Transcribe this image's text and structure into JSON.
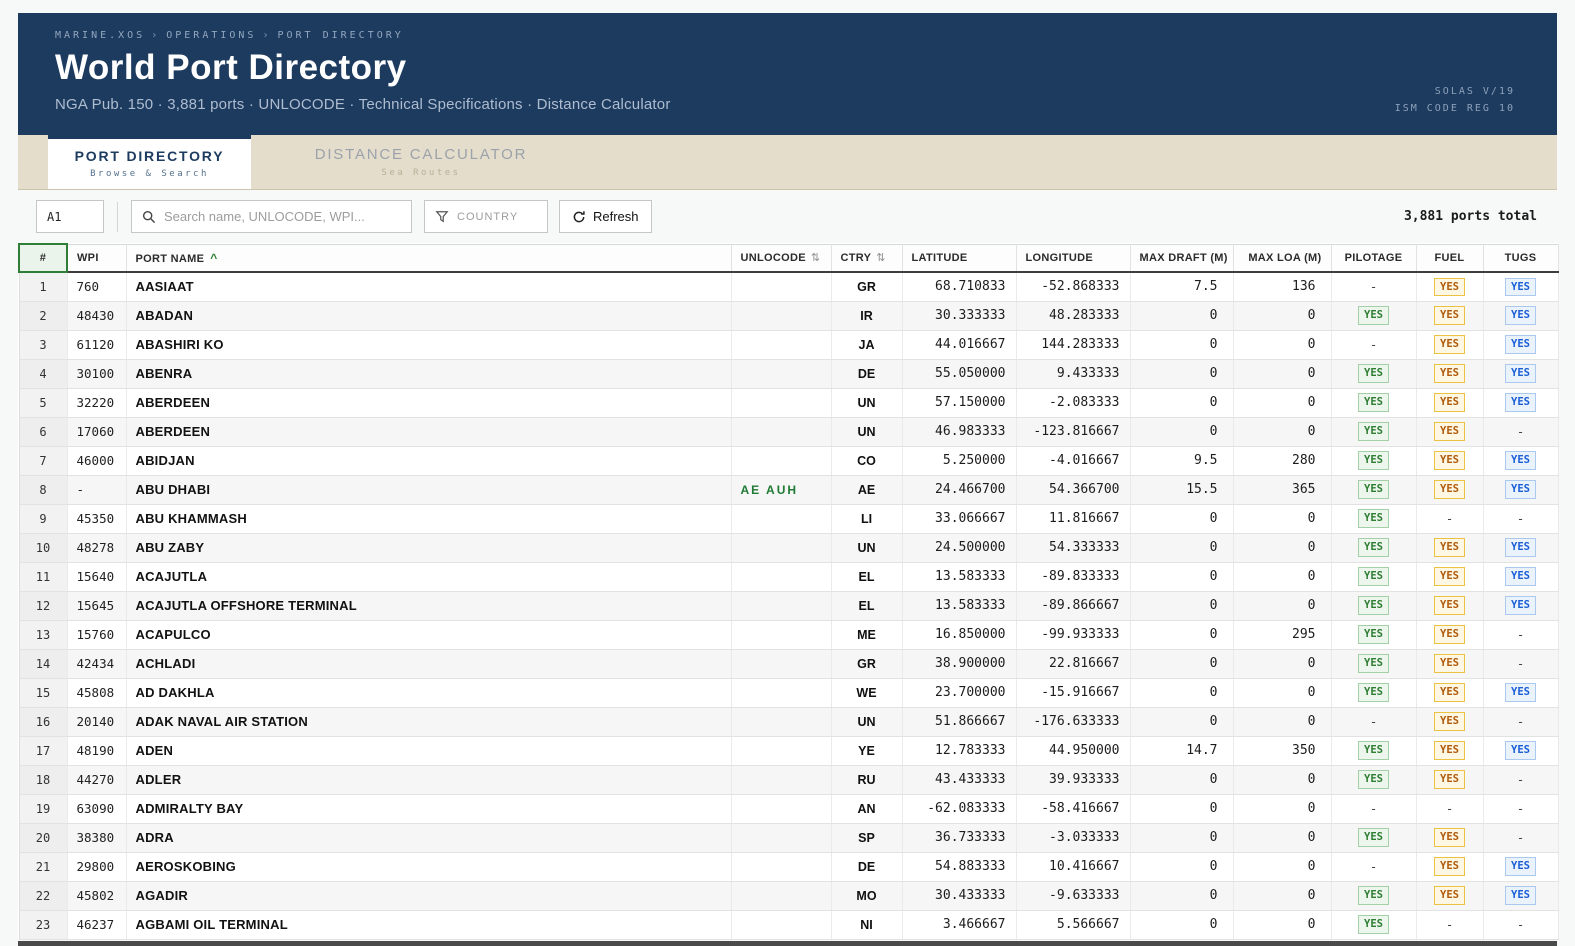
{
  "header": {
    "breadcrumb": [
      "MARINE.XOS",
      "OPERATIONS",
      "PORT DIRECTORY"
    ],
    "separator": "›",
    "title": "World Port Directory",
    "subtitle": "NGA Pub. 150 · 3,881 ports · UNLOCODE · Technical Specifications · Distance Calculator",
    "compliance": [
      "SOLAS V/19",
      "ISM CODE REG 10"
    ]
  },
  "tabs": [
    {
      "label": "PORT DIRECTORY",
      "sublabel": "Browse & Search",
      "active": true
    },
    {
      "label": "DISTANCE CALCULATOR",
      "sublabel": "Sea Routes",
      "active": false
    }
  ],
  "toolbar": {
    "cell_ref_value": "A1",
    "search_placeholder": "Search name, UNLOCODE, WPI...",
    "country_filter_label": "COUNTRY",
    "refresh_label": "Refresh",
    "total_text": "3,881 ports total"
  },
  "icons": {
    "search": "search-icon",
    "funnel": "filter-funnel-icon",
    "refresh": "refresh-icon"
  },
  "table": {
    "columns": [
      "#",
      "WPI",
      "PORT NAME",
      "UNLOCODE",
      "CTRY",
      "LATITUDE",
      "LONGITUDE",
      "MAX DRAFT (M)",
      "MAX LOA (M)",
      "PILOTAGE",
      "FUEL",
      "TUGS"
    ],
    "sort_glyphs": {
      "asc_caret": "^",
      "updown": "⇅"
    },
    "sorted_by": "PORT NAME",
    "rows": [
      {
        "num": "1",
        "wpi": "760",
        "name": "AASIAAT",
        "unlocode": "",
        "ctry": "GR",
        "lat": "68.710833",
        "lon": "-52.868333",
        "draft": "7.5",
        "loa": "136",
        "pilotage": "-",
        "fuel": "YES",
        "tugs": "YES"
      },
      {
        "num": "2",
        "wpi": "48430",
        "name": "ABADAN",
        "unlocode": "",
        "ctry": "IR",
        "lat": "30.333333",
        "lon": "48.283333",
        "draft": "0",
        "loa": "0",
        "pilotage": "YES",
        "fuel": "YES",
        "tugs": "YES"
      },
      {
        "num": "3",
        "wpi": "61120",
        "name": "ABASHIRI KO",
        "unlocode": "",
        "ctry": "JA",
        "lat": "44.016667",
        "lon": "144.283333",
        "draft": "0",
        "loa": "0",
        "pilotage": "-",
        "fuel": "YES",
        "tugs": "YES"
      },
      {
        "num": "4",
        "wpi": "30100",
        "name": "ABENRA",
        "unlocode": "",
        "ctry": "DE",
        "lat": "55.050000",
        "lon": "9.433333",
        "draft": "0",
        "loa": "0",
        "pilotage": "YES",
        "fuel": "YES",
        "tugs": "YES"
      },
      {
        "num": "5",
        "wpi": "32220",
        "name": "ABERDEEN",
        "unlocode": "",
        "ctry": "UN",
        "lat": "57.150000",
        "lon": "-2.083333",
        "draft": "0",
        "loa": "0",
        "pilotage": "YES",
        "fuel": "YES",
        "tugs": "YES"
      },
      {
        "num": "6",
        "wpi": "17060",
        "name": "ABERDEEN",
        "unlocode": "",
        "ctry": "UN",
        "lat": "46.983333",
        "lon": "-123.816667",
        "draft": "0",
        "loa": "0",
        "pilotage": "YES",
        "fuel": "YES",
        "tugs": "-"
      },
      {
        "num": "7",
        "wpi": "46000",
        "name": "ABIDJAN",
        "unlocode": "",
        "ctry": "CO",
        "lat": "5.250000",
        "lon": "-4.016667",
        "draft": "9.5",
        "loa": "280",
        "pilotage": "YES",
        "fuel": "YES",
        "tugs": "YES"
      },
      {
        "num": "8",
        "wpi": "-",
        "name": "ABU DHABI",
        "unlocode": "AE AUH",
        "ctry": "AE",
        "lat": "24.466700",
        "lon": "54.366700",
        "draft": "15.5",
        "loa": "365",
        "pilotage": "YES",
        "fuel": "YES",
        "tugs": "YES"
      },
      {
        "num": "9",
        "wpi": "45350",
        "name": "ABU KHAMMASH",
        "unlocode": "",
        "ctry": "LI",
        "lat": "33.066667",
        "lon": "11.816667",
        "draft": "0",
        "loa": "0",
        "pilotage": "YES",
        "fuel": "-",
        "tugs": "-"
      },
      {
        "num": "10",
        "wpi": "48278",
        "name": "ABU ZABY",
        "unlocode": "",
        "ctry": "UN",
        "lat": "24.500000",
        "lon": "54.333333",
        "draft": "0",
        "loa": "0",
        "pilotage": "YES",
        "fuel": "YES",
        "tugs": "YES"
      },
      {
        "num": "11",
        "wpi": "15640",
        "name": "ACAJUTLA",
        "unlocode": "",
        "ctry": "EL",
        "lat": "13.583333",
        "lon": "-89.833333",
        "draft": "0",
        "loa": "0",
        "pilotage": "YES",
        "fuel": "YES",
        "tugs": "YES"
      },
      {
        "num": "12",
        "wpi": "15645",
        "name": "ACAJUTLA OFFSHORE TERMINAL",
        "unlocode": "",
        "ctry": "EL",
        "lat": "13.583333",
        "lon": "-89.866667",
        "draft": "0",
        "loa": "0",
        "pilotage": "YES",
        "fuel": "YES",
        "tugs": "YES"
      },
      {
        "num": "13",
        "wpi": "15760",
        "name": "ACAPULCO",
        "unlocode": "",
        "ctry": "ME",
        "lat": "16.850000",
        "lon": "-99.933333",
        "draft": "0",
        "loa": "295",
        "pilotage": "YES",
        "fuel": "YES",
        "tugs": "-"
      },
      {
        "num": "14",
        "wpi": "42434",
        "name": "ACHLADI",
        "unlocode": "",
        "ctry": "GR",
        "lat": "38.900000",
        "lon": "22.816667",
        "draft": "0",
        "loa": "0",
        "pilotage": "YES",
        "fuel": "YES",
        "tugs": "-"
      },
      {
        "num": "15",
        "wpi": "45808",
        "name": "AD DAKHLA",
        "unlocode": "",
        "ctry": "WE",
        "lat": "23.700000",
        "lon": "-15.916667",
        "draft": "0",
        "loa": "0",
        "pilotage": "YES",
        "fuel": "YES",
        "tugs": "YES"
      },
      {
        "num": "16",
        "wpi": "20140",
        "name": "ADAK NAVAL AIR STATION",
        "unlocode": "",
        "ctry": "UN",
        "lat": "51.866667",
        "lon": "-176.633333",
        "draft": "0",
        "loa": "0",
        "pilotage": "-",
        "fuel": "YES",
        "tugs": "-"
      },
      {
        "num": "17",
        "wpi": "48190",
        "name": "ADEN",
        "unlocode": "",
        "ctry": "YE",
        "lat": "12.783333",
        "lon": "44.950000",
        "draft": "14.7",
        "loa": "350",
        "pilotage": "YES",
        "fuel": "YES",
        "tugs": "YES"
      },
      {
        "num": "18",
        "wpi": "44270",
        "name": "ADLER",
        "unlocode": "",
        "ctry": "RU",
        "lat": "43.433333",
        "lon": "39.933333",
        "draft": "0",
        "loa": "0",
        "pilotage": "YES",
        "fuel": "YES",
        "tugs": "-"
      },
      {
        "num": "19",
        "wpi": "63090",
        "name": "ADMIRALTY BAY",
        "unlocode": "",
        "ctry": "AN",
        "lat": "-62.083333",
        "lon": "-58.416667",
        "draft": "0",
        "loa": "0",
        "pilotage": "-",
        "fuel": "-",
        "tugs": "-"
      },
      {
        "num": "20",
        "wpi": "38380",
        "name": "ADRA",
        "unlocode": "",
        "ctry": "SP",
        "lat": "36.733333",
        "lon": "-3.033333",
        "draft": "0",
        "loa": "0",
        "pilotage": "YES",
        "fuel": "YES",
        "tugs": "-"
      },
      {
        "num": "21",
        "wpi": "29800",
        "name": "AEROSKOBING",
        "unlocode": "",
        "ctry": "DE",
        "lat": "54.883333",
        "lon": "10.416667",
        "draft": "0",
        "loa": "0",
        "pilotage": "-",
        "fuel": "YES",
        "tugs": "YES"
      },
      {
        "num": "22",
        "wpi": "45802",
        "name": "AGADIR",
        "unlocode": "",
        "ctry": "MO",
        "lat": "30.433333",
        "lon": "-9.633333",
        "draft": "0",
        "loa": "0",
        "pilotage": "YES",
        "fuel": "YES",
        "tugs": "YES"
      },
      {
        "num": "23",
        "wpi": "46237",
        "name": "AGBAMI OIL TERMINAL",
        "unlocode": "",
        "ctry": "NI",
        "lat": "3.466667",
        "lon": "5.566667",
        "draft": "0",
        "loa": "0",
        "pilotage": "YES",
        "fuel": "-",
        "tugs": "-"
      }
    ]
  },
  "colors": {
    "navy": "#1d3a5f",
    "tab_strip": "#e5ddcb",
    "pilotage_green": "#2e7d32",
    "fuel_amber": "#b05a0a",
    "tugs_blue": "#1a5ed6",
    "page_bg": "#f7f8f8"
  }
}
